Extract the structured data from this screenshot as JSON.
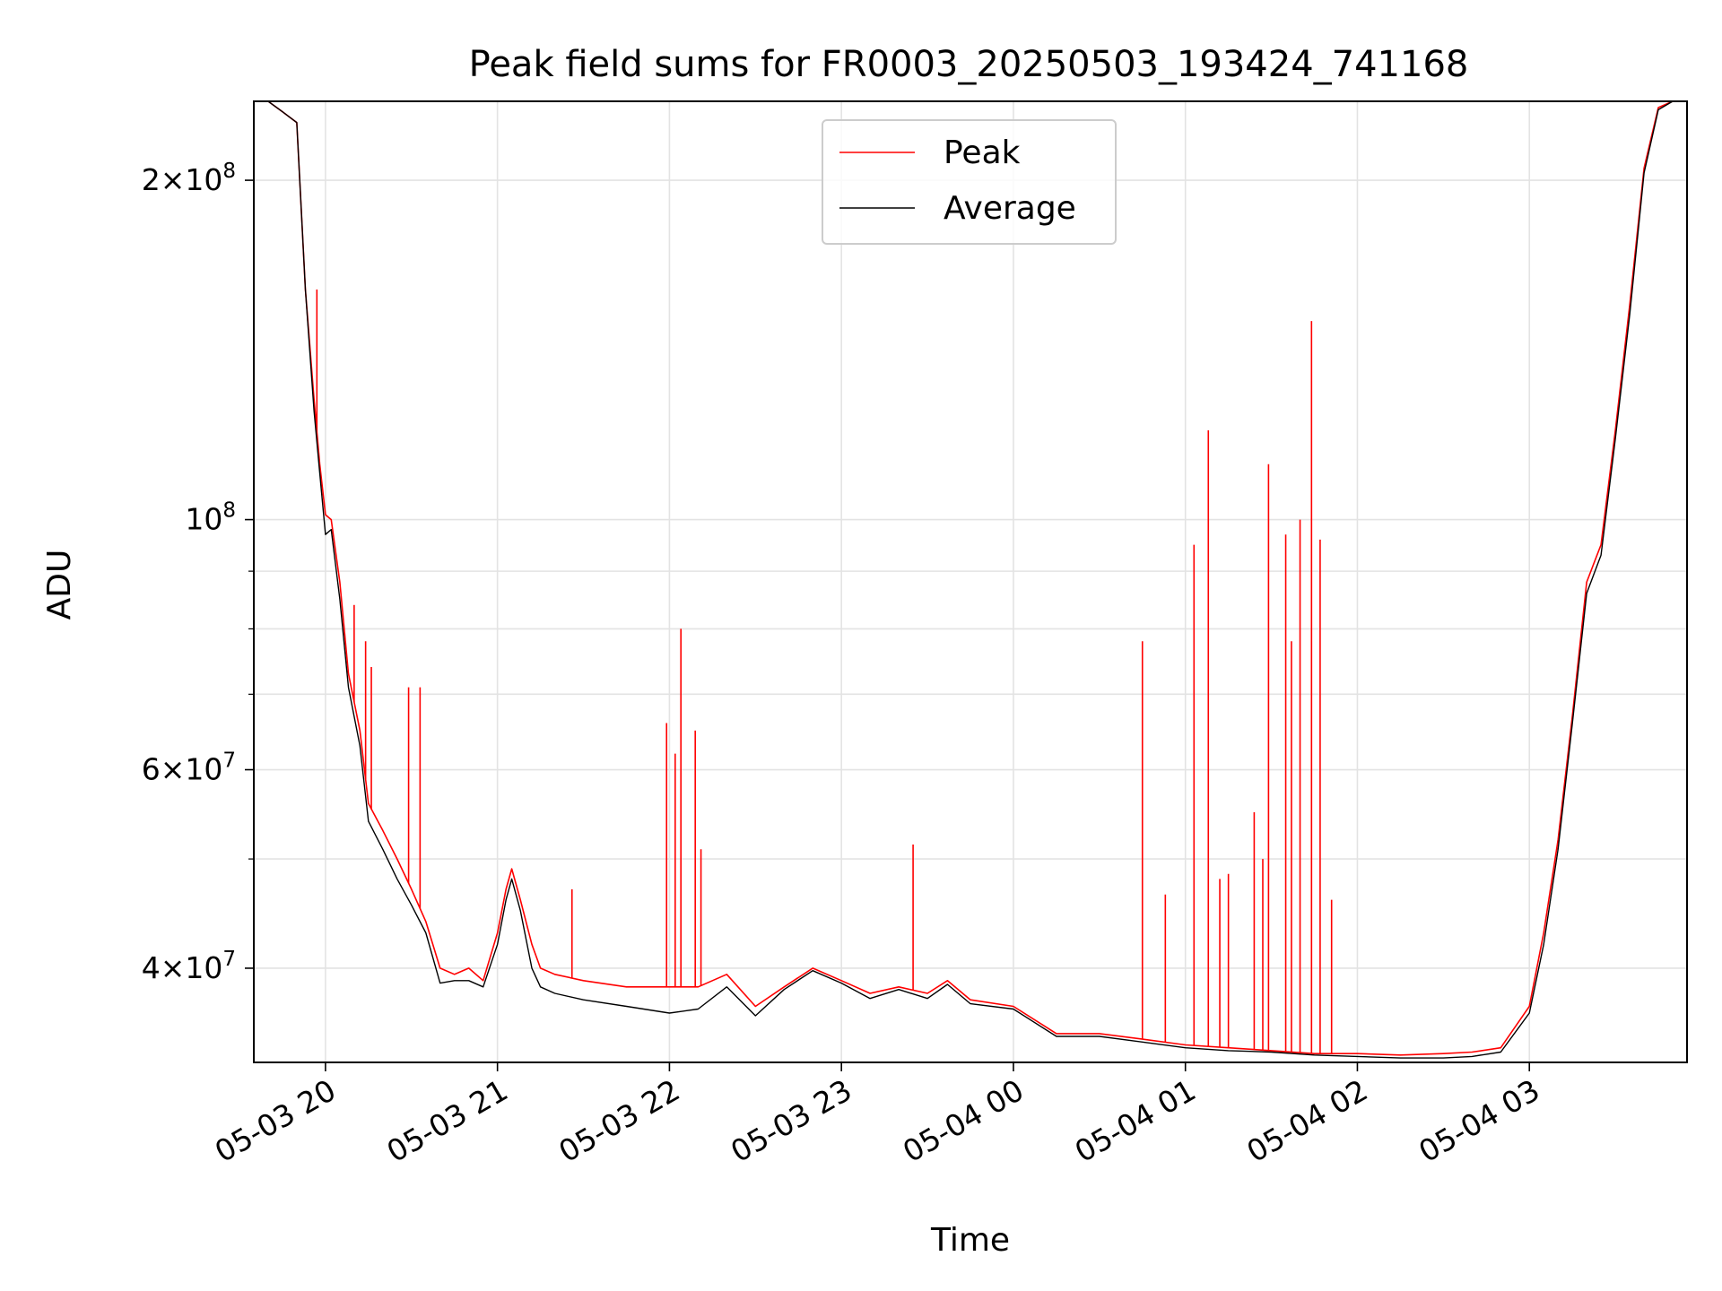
{
  "chart_data": {
    "type": "line",
    "title": "Peak field sums for FR0003_20250503_193424_741168",
    "xlabel": "Time",
    "ylabel": "ADU",
    "yscale": "log",
    "grid": true,
    "legend_position": "top-center",
    "xlim": [
      "2025-05-03 19:35",
      "2025-05-04 03:55"
    ],
    "ylim": [
      33000000,
      235000000
    ],
    "x_ticks": [
      {
        "value": "2025-05-03 20:00",
        "label": "05-03 20"
      },
      {
        "value": "2025-05-03 21:00",
        "label": "05-03 21"
      },
      {
        "value": "2025-05-03 22:00",
        "label": "05-03 22"
      },
      {
        "value": "2025-05-03 23:00",
        "label": "05-03 23"
      },
      {
        "value": "2025-05-04 00:00",
        "label": "05-04 00"
      },
      {
        "value": "2025-05-04 01:00",
        "label": "05-04 01"
      },
      {
        "value": "2025-05-04 02:00",
        "label": "05-04 02"
      },
      {
        "value": "2025-05-04 03:00",
        "label": "05-04 03"
      }
    ],
    "y_major_ticks": [
      {
        "value": 40000000,
        "mantissa": "4",
        "exp": "7"
      },
      {
        "value": 60000000,
        "mantissa": "6",
        "exp": "7"
      },
      {
        "value": 100000000,
        "mantissa": "",
        "exp": "8"
      },
      {
        "value": 200000000,
        "mantissa": "2",
        "exp": "8"
      }
    ],
    "y_minor_ticks": [
      50000000,
      70000000,
      80000000,
      90000000
    ],
    "series": [
      {
        "name": "Peak",
        "color": "#ff0000",
        "x": [
          "2025-05-03 19:35",
          "2025-05-03 19:40",
          "2025-05-03 19:45",
          "2025-05-03 19:50",
          "2025-05-03 19:53",
          "2025-05-03 19:56",
          "2025-05-03 19:58",
          "2025-05-03 20:00",
          "2025-05-03 20:02",
          "2025-05-03 20:05",
          "2025-05-03 20:08",
          "2025-05-03 20:12",
          "2025-05-03 20:15",
          "2025-05-03 20:20",
          "2025-05-03 20:25",
          "2025-05-03 20:30",
          "2025-05-03 20:35",
          "2025-05-03 20:40",
          "2025-05-03 20:45",
          "2025-05-03 20:50",
          "2025-05-03 20:55",
          "2025-05-03 21:00",
          "2025-05-03 21:03",
          "2025-05-03 21:05",
          "2025-05-03 21:08",
          "2025-05-03 21:12",
          "2025-05-03 21:15",
          "2025-05-03 21:20",
          "2025-05-03 21:30",
          "2025-05-03 21:45",
          "2025-05-03 22:00",
          "2025-05-03 22:10",
          "2025-05-03 22:20",
          "2025-05-03 22:30",
          "2025-05-03 22:40",
          "2025-05-03 22:50",
          "2025-05-03 23:00",
          "2025-05-03 23:10",
          "2025-05-03 23:20",
          "2025-05-03 23:30",
          "2025-05-03 23:37",
          "2025-05-03 23:45",
          "2025-05-04 00:00",
          "2025-05-04 00:15",
          "2025-05-04 00:30",
          "2025-05-04 00:45",
          "2025-05-04 01:00",
          "2025-05-04 01:15",
          "2025-05-04 01:30",
          "2025-05-04 01:45",
          "2025-05-04 02:00",
          "2025-05-04 02:15",
          "2025-05-04 02:30",
          "2025-05-04 02:40",
          "2025-05-04 02:50",
          "2025-05-04 03:00",
          "2025-05-04 03:05",
          "2025-05-04 03:10",
          "2025-05-04 03:15",
          "2025-05-04 03:20",
          "2025-05-04 03:25",
          "2025-05-04 03:30",
          "2025-05-04 03:35",
          "2025-05-04 03:40",
          "2025-05-04 03:45",
          "2025-05-04 03:50",
          "2025-05-04 03:55"
        ],
        "y": [
          235000000,
          235000000,
          230000000,
          225000000,
          160000000,
          128000000,
          112000000,
          101000000,
          100000000,
          88000000,
          73000000,
          65000000,
          56000000,
          53000000,
          50000000,
          47000000,
          44000000,
          40000000,
          39500000,
          40000000,
          39000000,
          43000000,
          47000000,
          49000000,
          46000000,
          42000000,
          40000000,
          39500000,
          39000000,
          38500000,
          38500000,
          38500000,
          39500000,
          37000000,
          38500000,
          40000000,
          39000000,
          38000000,
          38500000,
          38000000,
          39000000,
          37500000,
          37000000,
          35000000,
          35000000,
          34600000,
          34200000,
          34000000,
          33800000,
          33600000,
          33600000,
          33500000,
          33600000,
          33700000,
          34000000,
          37000000,
          43000000,
          52000000,
          67000000,
          88000000,
          95000000,
          120000000,
          155000000,
          205000000,
          232000000,
          235000000,
          235000000
        ],
        "spikes": [
          {
            "x": "2025-05-03 19:57",
            "y": 160000000
          },
          {
            "x": "2025-05-03 20:10",
            "y": 84000000
          },
          {
            "x": "2025-05-03 20:14",
            "y": 78000000
          },
          {
            "x": "2025-05-03 20:16",
            "y": 74000000
          },
          {
            "x": "2025-05-03 20:29",
            "y": 71000000
          },
          {
            "x": "2025-05-03 20:33",
            "y": 71000000
          },
          {
            "x": "2025-05-03 21:26",
            "y": 47000000
          },
          {
            "x": "2025-05-03 21:59",
            "y": 66000000
          },
          {
            "x": "2025-05-03 22:02",
            "y": 62000000
          },
          {
            "x": "2025-05-03 22:04",
            "y": 80000000
          },
          {
            "x": "2025-05-03 22:09",
            "y": 65000000
          },
          {
            "x": "2025-05-03 22:11",
            "y": 51000000
          },
          {
            "x": "2025-05-03 23:25",
            "y": 51500000
          },
          {
            "x": "2025-05-04 00:45",
            "y": 78000000
          },
          {
            "x": "2025-05-04 00:53",
            "y": 46500000
          },
          {
            "x": "2025-05-04 01:03",
            "y": 95000000
          },
          {
            "x": "2025-05-04 01:08",
            "y": 120000000
          },
          {
            "x": "2025-05-04 01:12",
            "y": 48000000
          },
          {
            "x": "2025-05-04 01:15",
            "y": 48500000
          },
          {
            "x": "2025-05-04 01:24",
            "y": 55000000
          },
          {
            "x": "2025-05-04 01:27",
            "y": 50000000
          },
          {
            "x": "2025-05-04 01:29",
            "y": 112000000
          },
          {
            "x": "2025-05-04 01:35",
            "y": 97000000
          },
          {
            "x": "2025-05-04 01:37",
            "y": 78000000
          },
          {
            "x": "2025-05-04 01:40",
            "y": 100000000
          },
          {
            "x": "2025-05-04 01:44",
            "y": 150000000
          },
          {
            "x": "2025-05-04 01:47",
            "y": 96000000
          },
          {
            "x": "2025-05-04 01:51",
            "y": 46000000
          }
        ]
      },
      {
        "name": "Average",
        "color": "#000000",
        "x": [
          "2025-05-03 19:35",
          "2025-05-03 19:40",
          "2025-05-03 19:45",
          "2025-05-03 19:50",
          "2025-05-03 19:53",
          "2025-05-03 19:56",
          "2025-05-03 19:58",
          "2025-05-03 20:00",
          "2025-05-03 20:02",
          "2025-05-03 20:05",
          "2025-05-03 20:08",
          "2025-05-03 20:12",
          "2025-05-03 20:15",
          "2025-05-03 20:20",
          "2025-05-03 20:25",
          "2025-05-03 20:30",
          "2025-05-03 20:35",
          "2025-05-03 20:40",
          "2025-05-03 20:45",
          "2025-05-03 20:50",
          "2025-05-03 20:55",
          "2025-05-03 21:00",
          "2025-05-03 21:03",
          "2025-05-03 21:05",
          "2025-05-03 21:08",
          "2025-05-03 21:12",
          "2025-05-03 21:15",
          "2025-05-03 21:20",
          "2025-05-03 21:30",
          "2025-05-03 21:45",
          "2025-05-03 22:00",
          "2025-05-03 22:10",
          "2025-05-03 22:20",
          "2025-05-03 22:30",
          "2025-05-03 22:40",
          "2025-05-03 22:50",
          "2025-05-03 23:00",
          "2025-05-03 23:10",
          "2025-05-03 23:20",
          "2025-05-03 23:30",
          "2025-05-03 23:37",
          "2025-05-03 23:45",
          "2025-05-04 00:00",
          "2025-05-04 00:15",
          "2025-05-04 00:30",
          "2025-05-04 00:45",
          "2025-05-04 01:00",
          "2025-05-04 01:15",
          "2025-05-04 01:30",
          "2025-05-04 01:45",
          "2025-05-04 02:00",
          "2025-05-04 02:15",
          "2025-05-04 02:30",
          "2025-05-04 02:40",
          "2025-05-04 02:50",
          "2025-05-04 03:00",
          "2025-05-04 03:05",
          "2025-05-04 03:10",
          "2025-05-04 03:15",
          "2025-05-04 03:20",
          "2025-05-04 03:25",
          "2025-05-04 03:30",
          "2025-05-04 03:35",
          "2025-05-04 03:40",
          "2025-05-04 03:45",
          "2025-05-04 03:50",
          "2025-05-04 03:55"
        ],
        "y": [
          235000000,
          235000000,
          230000000,
          225000000,
          160000000,
          125000000,
          110000000,
          97000000,
          98000000,
          85000000,
          71000000,
          63000000,
          54000000,
          51000000,
          48000000,
          45500000,
          43000000,
          38800000,
          39000000,
          39000000,
          38500000,
          42000000,
          46000000,
          48000000,
          45000000,
          40000000,
          38500000,
          38000000,
          37500000,
          37000000,
          36500000,
          36800000,
          38500000,
          36300000,
          38300000,
          39800000,
          38800000,
          37600000,
          38300000,
          37600000,
          38700000,
          37200000,
          36800000,
          34800000,
          34800000,
          34400000,
          34000000,
          33800000,
          33700000,
          33500000,
          33400000,
          33300000,
          33300000,
          33400000,
          33700000,
          36500000,
          42000000,
          51000000,
          66000000,
          86000000,
          93000000,
          118000000,
          152000000,
          203000000,
          231000000,
          235000000,
          235000000
        ]
      }
    ]
  }
}
